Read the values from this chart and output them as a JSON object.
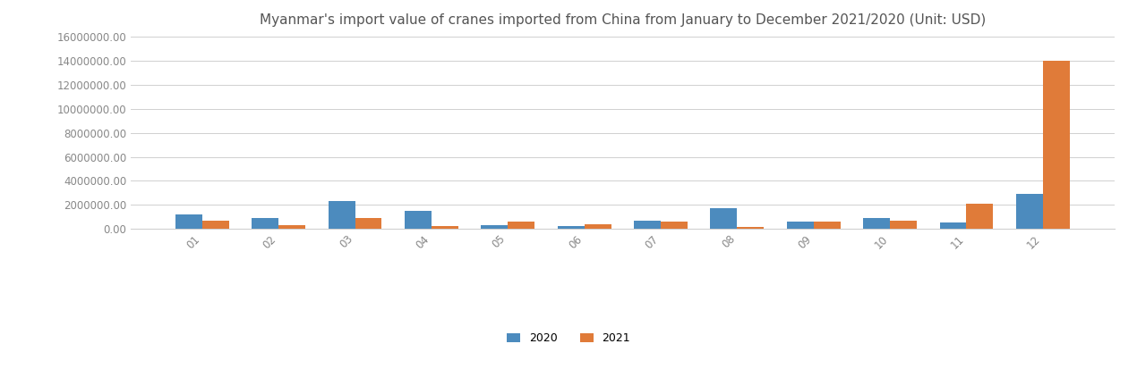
{
  "title": "Myanmar's import value of cranes imported from China from January to December 2021/2020 (Unit: USD)",
  "months": [
    "01",
    "02",
    "03",
    "04",
    "05",
    "06",
    "07",
    "08",
    "09",
    "10",
    "11",
    "12"
  ],
  "values_2020": [
    1200000,
    900000,
    2300000,
    1500000,
    300000,
    250000,
    700000,
    1700000,
    600000,
    900000,
    550000,
    2900000
  ],
  "values_2021": [
    700000,
    300000,
    900000,
    200000,
    600000,
    350000,
    600000,
    150000,
    600000,
    700000,
    2100000,
    14000000
  ],
  "color_2020": "#4C8BBE",
  "color_2021": "#E07B39",
  "ylim": [
    0,
    16000000
  ],
  "yticks": [
    0,
    2000000,
    4000000,
    6000000,
    8000000,
    10000000,
    12000000,
    14000000,
    16000000
  ],
  "legend_labels": [
    "2020",
    "2021"
  ],
  "bar_width": 0.35,
  "title_fontsize": 11,
  "tick_fontsize": 8.5,
  "legend_fontsize": 9,
  "grid_color": "#d0d0d0",
  "background_color": "#ffffff",
  "tick_color": "#888888"
}
